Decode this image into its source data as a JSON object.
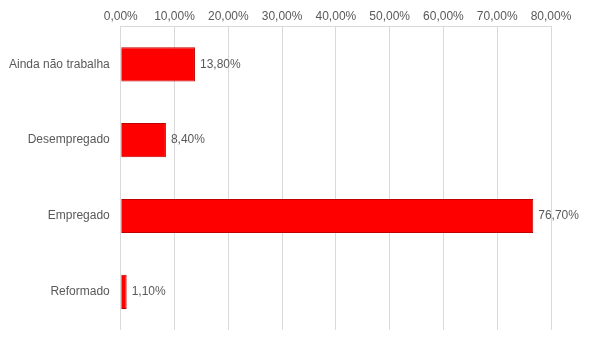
{
  "chart_data": {
    "type": "bar",
    "orientation": "horizontal",
    "categories": [
      "Ainda não trabalha",
      "Desempregado",
      "Empregado",
      "Reformado"
    ],
    "values": [
      13.8,
      8.4,
      76.7,
      1.1
    ],
    "value_labels": [
      "13,80%",
      "8,40%",
      "76,70%",
      "1,10%"
    ],
    "color": "#ff0000",
    "xlim": [
      0,
      80
    ],
    "xticks": [
      {
        "value": 0,
        "label": "0,00%"
      },
      {
        "value": 10,
        "label": "10,00%"
      },
      {
        "value": 20,
        "label": "20,00%"
      },
      {
        "value": 30,
        "label": "30,00%"
      },
      {
        "value": 40,
        "label": "40,00%"
      },
      {
        "value": 50,
        "label": "50,00%"
      },
      {
        "value": 60,
        "label": "60,00%"
      },
      {
        "value": 70,
        "label": "70,00%"
      },
      {
        "value": 80,
        "label": "80,00%"
      }
    ],
    "grid": true,
    "data_labels": true
  }
}
